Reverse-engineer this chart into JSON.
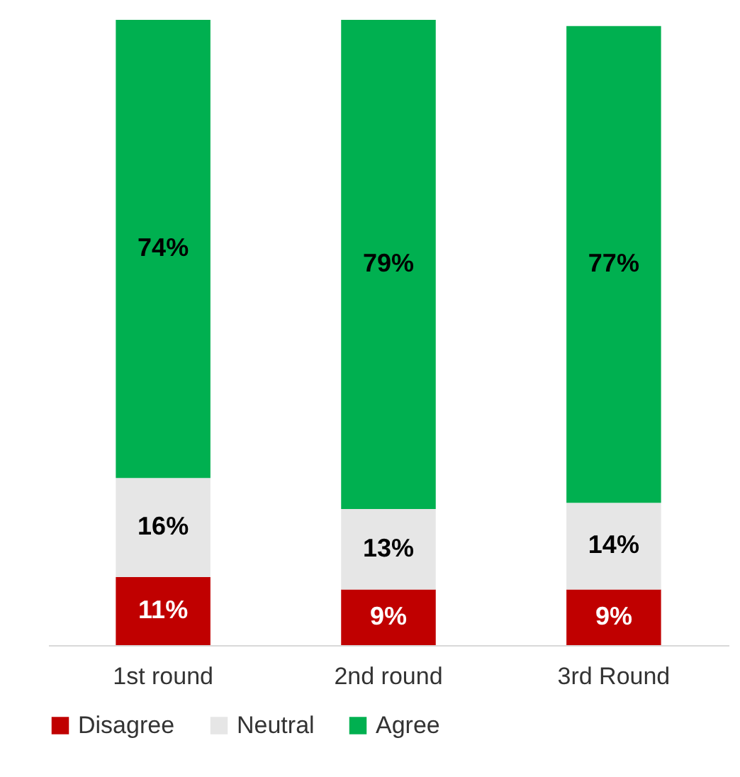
{
  "chart_data": {
    "type": "bar",
    "stacked": true,
    "categories": [
      "1st round",
      "2nd round",
      "3rd Round"
    ],
    "series": [
      {
        "name": "Disagree",
        "color": "#c00000",
        "values": [
          11,
          9,
          9
        ],
        "value_labels": [
          "11%",
          "9%",
          "9%"
        ]
      },
      {
        "name": "Neutral",
        "color": "#e6e6e6",
        "values": [
          16,
          13,
          14
        ],
        "value_labels": [
          "16%",
          "13%",
          "14%"
        ]
      },
      {
        "name": "Agree",
        "color": "#00b050",
        "values": [
          74,
          79,
          77
        ],
        "value_labels": [
          "74%",
          "79%",
          "77%"
        ]
      }
    ],
    "legend": "bottom",
    "tick_labels": "x",
    "grid": false
  }
}
